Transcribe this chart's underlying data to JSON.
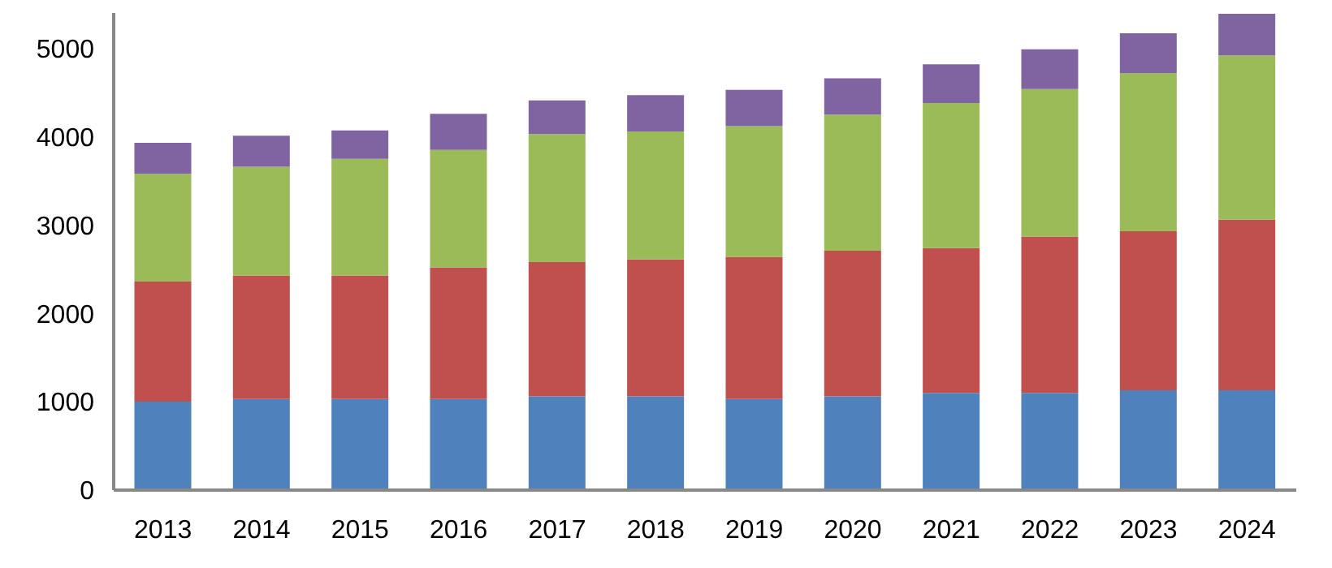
{
  "chart_data": {
    "type": "bar",
    "stacked": true,
    "categories": [
      "2013",
      "2014",
      "2015",
      "2016",
      "2017",
      "2018",
      "2019",
      "2020",
      "2021",
      "2022",
      "2023",
      "2024"
    ],
    "series": [
      {
        "color": "#4f81bd",
        "values": [
          1000,
          1030,
          1030,
          1030,
          1060,
          1060,
          1030,
          1060,
          1100,
          1100,
          1130,
          1130
        ]
      },
      {
        "color": "#c0504d",
        "values": [
          1360,
          1400,
          1400,
          1490,
          1520,
          1550,
          1610,
          1650,
          1640,
          1770,
          1800,
          1930
        ]
      },
      {
        "color": "#9bbb59",
        "values": [
          1220,
          1230,
          1320,
          1330,
          1450,
          1450,
          1480,
          1540,
          1640,
          1670,
          1790,
          1860
        ]
      },
      {
        "color": "#8064a2",
        "values": [
          350,
          350,
          320,
          410,
          380,
          410,
          410,
          410,
          440,
          450,
          450,
          470
        ]
      }
    ],
    "ylim": [
      0,
      5400
    ],
    "yticks": [
      0,
      1000,
      2000,
      3000,
      4000,
      5000
    ],
    "grid": false,
    "legend": false
  }
}
